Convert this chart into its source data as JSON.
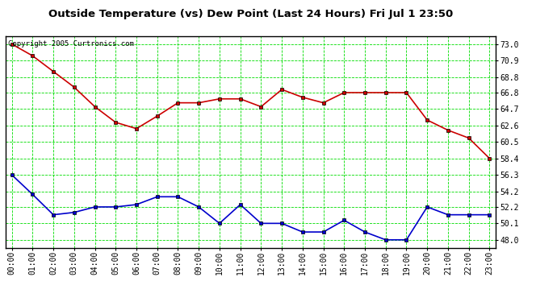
{
  "title": "Outside Temperature (vs) Dew Point (Last 24 Hours) Fri Jul 1 23:50",
  "copyright": "Copyright 2005 Curtronics.com",
  "background_color": "#ffffff",
  "plot_background": "#ffffff",
  "grid_color": "#00dd00",
  "hours": [
    0,
    1,
    2,
    3,
    4,
    5,
    6,
    7,
    8,
    9,
    10,
    11,
    12,
    13,
    14,
    15,
    16,
    17,
    18,
    19,
    20,
    21,
    22,
    23
  ],
  "temp_red": [
    73.0,
    71.5,
    69.5,
    67.5,
    65.0,
    63.0,
    62.2,
    63.8,
    65.5,
    65.5,
    66.0,
    66.0,
    65.0,
    67.2,
    66.2,
    65.5,
    66.8,
    66.8,
    66.8,
    66.8,
    63.3,
    62.0,
    61.0,
    58.4
  ],
  "dew_blue": [
    56.3,
    53.8,
    51.2,
    51.5,
    52.2,
    52.2,
    52.5,
    53.5,
    53.5,
    52.2,
    50.1,
    52.5,
    50.1,
    50.1,
    49.0,
    49.0,
    50.5,
    49.0,
    48.0,
    48.0,
    52.2,
    51.2,
    51.2,
    51.2
  ],
  "temp_color": "#cc0000",
  "dew_color": "#0000cc",
  "yticks": [
    48.0,
    50.1,
    52.2,
    54.2,
    56.3,
    58.4,
    60.5,
    62.6,
    64.7,
    66.8,
    68.8,
    70.9,
    73.0
  ],
  "ylim": [
    47.0,
    74.0
  ],
  "xlim": [
    -0.3,
    23.3
  ],
  "markersize": 3.5,
  "linewidth": 1.2,
  "title_fontsize": 9.5,
  "tick_fontsize": 7,
  "copyright_fontsize": 6.5
}
